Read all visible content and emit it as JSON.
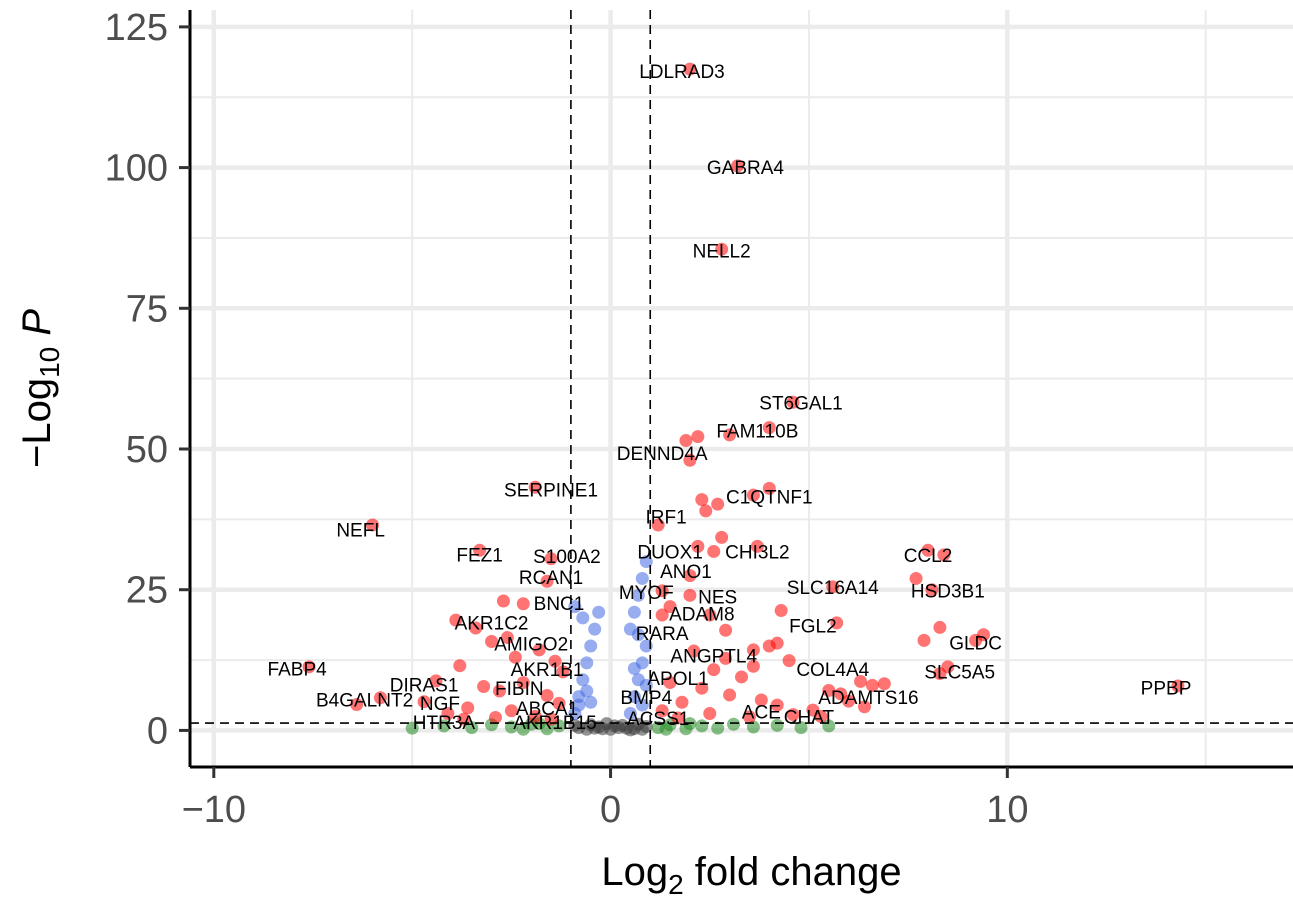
{
  "chart_data": {
    "type": "scatter",
    "title": "",
    "xlabel": "Log2 fold change",
    "ylabel": "−Log10 P",
    "xlim": [
      -10.6,
      17.2
    ],
    "ylim": [
      -6.5,
      128
    ],
    "x_ticks": [
      -10,
      0,
      10
    ],
    "x_tick_labels": [
      "−10",
      "0",
      "10"
    ],
    "y_ticks": [
      0,
      25,
      50,
      75,
      100,
      125
    ],
    "y_tick_labels": [
      "0",
      "25",
      "50",
      "75",
      "100",
      "125"
    ],
    "grid": true,
    "legend": "none",
    "thresholds": {
      "log2fc": [
        -1,
        1
      ],
      "neg_log10_p": 1.3
    },
    "colors": {
      "ns": "#3d3d3d",
      "log2fc_only": "#228B22",
      "p_only": "#4169E1",
      "both": "#FF0000",
      "grid": "#ebebeb",
      "axis": "#000000"
    },
    "series": [
      {
        "points": [
          [
            -0.8,
            0.5
          ],
          [
            -0.5,
            1.0
          ],
          [
            -0.2,
            0.3
          ],
          [
            0.1,
            0.8
          ],
          [
            0.4,
            0.4
          ],
          [
            0.7,
            1.1
          ],
          [
            -0.6,
            0.2
          ],
          [
            -0.3,
            0.6
          ],
          [
            0.0,
            0.2
          ],
          [
            0.3,
            0.9
          ],
          [
            0.6,
            0.3
          ],
          [
            0.9,
            0.7
          ],
          [
            -0.9,
            0.9
          ],
          [
            -0.1,
            1.2
          ],
          [
            0.2,
            0.5
          ],
          [
            0.5,
            0.1
          ],
          [
            -0.4,
            0.4
          ],
          [
            0.8,
            0.2
          ]
        ]
      },
      {
        "points": [
          [
            -3.5,
            0.5
          ],
          [
            -3.0,
            1.0
          ],
          [
            -2.5,
            0.6
          ],
          [
            -2.0,
            1.1
          ],
          [
            -1.6,
            0.3
          ],
          [
            -1.3,
            0.8
          ],
          [
            1.2,
            0.5
          ],
          [
            1.5,
            1.0
          ],
          [
            1.9,
            0.3
          ],
          [
            2.3,
            0.8
          ],
          [
            2.7,
            0.4
          ],
          [
            3.1,
            1.1
          ],
          [
            3.6,
            0.6
          ],
          [
            4.2,
            0.9
          ],
          [
            4.8,
            0.5
          ],
          [
            -4.2,
            0.8
          ],
          [
            -5.0,
            0.4
          ],
          [
            5.5,
            0.8
          ],
          [
            -2.2,
            0.2
          ],
          [
            2.0,
            1.2
          ],
          [
            -1.8,
            1.2
          ],
          [
            1.4,
            0.2
          ]
        ]
      },
      {
        "points": [
          [
            -0.9,
            3
          ],
          [
            -0.8,
            6
          ],
          [
            -0.7,
            9
          ],
          [
            -0.6,
            12
          ],
          [
            -0.5,
            15
          ],
          [
            -0.4,
            18
          ],
          [
            -0.3,
            21
          ],
          [
            -0.8,
            4.5
          ],
          [
            -0.6,
            7
          ],
          [
            -0.9,
            22
          ],
          [
            -0.7,
            20
          ],
          [
            -0.5,
            5
          ],
          [
            0.5,
            3
          ],
          [
            0.6,
            6
          ],
          [
            0.7,
            9
          ],
          [
            0.8,
            12
          ],
          [
            0.9,
            15
          ],
          [
            0.5,
            18
          ],
          [
            0.6,
            21
          ],
          [
            0.7,
            24
          ],
          [
            0.8,
            27
          ],
          [
            0.9,
            30
          ],
          [
            0.6,
            11
          ],
          [
            0.8,
            4.5
          ],
          [
            0.7,
            17
          ],
          [
            0.9,
            8
          ]
        ]
      },
      {
        "points": [
          [
            2.0,
            117.5
          ],
          [
            3.2,
            100.3
          ],
          [
            2.8,
            85.5
          ],
          [
            4.6,
            58.3
          ],
          [
            4.0,
            53.8
          ],
          [
            2.2,
            52.2
          ],
          [
            1.9,
            51.5
          ],
          [
            3.0,
            52.5
          ],
          [
            2.0,
            48.0
          ],
          [
            4.0,
            43.0
          ],
          [
            3.6,
            41.8
          ],
          [
            2.3,
            41.0
          ],
          [
            2.7,
            40.2
          ],
          [
            2.4,
            39.0
          ],
          [
            -1.9,
            43.2
          ],
          [
            -6.0,
            36.5
          ],
          [
            1.2,
            36.5
          ],
          [
            2.8,
            34.3
          ],
          [
            3.7,
            32.7
          ],
          [
            2.2,
            32.7
          ],
          [
            2.6,
            31.8
          ],
          [
            -3.3,
            32.0
          ],
          [
            -1.5,
            30.5
          ],
          [
            8.0,
            32.0
          ],
          [
            8.4,
            31.2
          ],
          [
            7.7,
            27.0
          ],
          [
            8.1,
            25.0
          ],
          [
            5.6,
            25.5
          ],
          [
            2.0,
            27.5
          ],
          [
            -1.6,
            26.5
          ],
          [
            -2.7,
            23.0
          ],
          [
            -2.2,
            22.5
          ],
          [
            1.3,
            24.8
          ],
          [
            2.0,
            24.0
          ],
          [
            1.5,
            22.0
          ],
          [
            4.3,
            21.3
          ],
          [
            2.5,
            20.5
          ],
          [
            -3.9,
            19.6
          ],
          [
            -3.4,
            18.2
          ],
          [
            -2.6,
            16.5
          ],
          [
            5.7,
            19.1
          ],
          [
            2.9,
            17.8
          ],
          [
            1.3,
            20.5
          ],
          [
            8.3,
            18.3
          ],
          [
            7.9,
            16.0
          ],
          [
            9.4,
            17.0
          ],
          [
            9.2,
            16.0
          ],
          [
            4.2,
            15.5
          ],
          [
            4.0,
            15.0
          ],
          [
            3.6,
            14.3
          ],
          [
            2.1,
            14.1
          ],
          [
            -3.0,
            15.8
          ],
          [
            -2.4,
            13.0
          ],
          [
            -1.8,
            14.3
          ],
          [
            -7.6,
            11.3
          ],
          [
            -3.8,
            11.5
          ],
          [
            -1.2,
            10.4
          ],
          [
            -1.4,
            12.3
          ],
          [
            2.9,
            12.8
          ],
          [
            3.6,
            11.4
          ],
          [
            4.5,
            12.4
          ],
          [
            8.5,
            11.3
          ],
          [
            8.3,
            10.1
          ],
          [
            6.3,
            8.7
          ],
          [
            6.6,
            8.0
          ],
          [
            6.9,
            8.3
          ],
          [
            5.5,
            7.1
          ],
          [
            5.8,
            6.5
          ],
          [
            6.0,
            5.2
          ],
          [
            14.3,
            7.9
          ],
          [
            -4.4,
            8.8
          ],
          [
            -4.7,
            5.1
          ],
          [
            -5.8,
            5.8
          ],
          [
            -6.4,
            4.6
          ],
          [
            -3.2,
            7.8
          ],
          [
            -2.8,
            7.0
          ],
          [
            -2.2,
            8.5
          ],
          [
            -1.6,
            6.2
          ],
          [
            -3.6,
            4.0
          ],
          [
            -4.1,
            3.0
          ],
          [
            -2.5,
            3.5
          ],
          [
            -1.9,
            2.5
          ],
          [
            1.5,
            8.5
          ],
          [
            2.3,
            7.5
          ],
          [
            3.0,
            6.3
          ],
          [
            3.8,
            5.4
          ],
          [
            4.2,
            4.5
          ],
          [
            5.1,
            3.6
          ],
          [
            4.6,
            2.8
          ],
          [
            2.5,
            3.0
          ],
          [
            1.8,
            5.0
          ],
          [
            1.3,
            3.5
          ],
          [
            3.3,
            9.5
          ],
          [
            2.6,
            10.8
          ],
          [
            -1.3,
            4.8
          ],
          [
            -2.9,
            2.3
          ],
          [
            5.3,
            2.5
          ],
          [
            6.4,
            4.2
          ],
          [
            1.7,
            2.2
          ],
          [
            3.5,
            2.4
          ],
          [
            -3.7,
            2.0
          ],
          [
            -1.5,
            2.0
          ]
        ]
      }
    ],
    "labels": [
      {
        "text": "LDLRAD3",
        "x": 1.8,
        "y": 117.2
      },
      {
        "text": "GABRA4",
        "x": 3.4,
        "y": 100.1
      },
      {
        "text": "NELL2",
        "x": 2.8,
        "y": 85.3
      },
      {
        "text": "ST6GAL1",
        "x": 4.8,
        "y": 58.3
      },
      {
        "text": "FAM110B",
        "x": 3.7,
        "y": 53.3
      },
      {
        "text": "DENND4A",
        "x": 1.3,
        "y": 49.3
      },
      {
        "text": "SERPINE1",
        "x": -1.5,
        "y": 42.8
      },
      {
        "text": "C1QTNF1",
        "x": 4.0,
        "y": 41.6
      },
      {
        "text": "NEFL",
        "x": -6.3,
        "y": 35.7
      },
      {
        "text": "IRF1",
        "x": 1.4,
        "y": 38.0
      },
      {
        "text": "FEZ1",
        "x": -3.3,
        "y": 31.3
      },
      {
        "text": "S100A2",
        "x": -1.1,
        "y": 31.0
      },
      {
        "text": "DUOX1",
        "x": 1.5,
        "y": 31.8
      },
      {
        "text": "CHI3L2",
        "x": 3.7,
        "y": 31.8
      },
      {
        "text": "CCL2",
        "x": 8.0,
        "y": 31.2
      },
      {
        "text": "RCAN1",
        "x": -1.5,
        "y": 27.3
      },
      {
        "text": "ANO1",
        "x": 1.9,
        "y": 28.3
      },
      {
        "text": "SLC16A14",
        "x": 5.6,
        "y": 25.5
      },
      {
        "text": "HSD3B1",
        "x": 8.5,
        "y": 24.9
      },
      {
        "text": "MYOF",
        "x": 0.9,
        "y": 24.6
      },
      {
        "text": "NES",
        "x": 2.7,
        "y": 23.8
      },
      {
        "text": "BNC1",
        "x": -1.3,
        "y": 22.6
      },
      {
        "text": "ADAM8",
        "x": 2.3,
        "y": 20.8
      },
      {
        "text": "AKR1C2",
        "x": -3.0,
        "y": 19.2
      },
      {
        "text": "FGL2",
        "x": 5.1,
        "y": 18.6
      },
      {
        "text": "RARA",
        "x": 1.3,
        "y": 17.3
      },
      {
        "text": "GLDC",
        "x": 9.2,
        "y": 15.6
      },
      {
        "text": "AMIGO2",
        "x": -2.0,
        "y": 15.4
      },
      {
        "text": "ANGPTL4",
        "x": 2.6,
        "y": 13.3
      },
      {
        "text": "FABP4",
        "x": -7.9,
        "y": 11.0
      },
      {
        "text": "AKR1B1",
        "x": -1.6,
        "y": 10.9
      },
      {
        "text": "COL4A4",
        "x": 5.6,
        "y": 10.9
      },
      {
        "text": "SLC5A5",
        "x": 8.8,
        "y": 10.5
      },
      {
        "text": "APOL1",
        "x": 1.7,
        "y": 9.3
      },
      {
        "text": "DIRAS1",
        "x": -4.7,
        "y": 8.2
      },
      {
        "text": "FIBIN",
        "x": -2.3,
        "y": 7.5
      },
      {
        "text": "PPBP",
        "x": 14.0,
        "y": 7.6
      },
      {
        "text": "B4GALNT2",
        "x": -6.2,
        "y": 5.5
      },
      {
        "text": "NGF",
        "x": -4.3,
        "y": 4.9
      },
      {
        "text": "BMP4",
        "x": 0.9,
        "y": 5.9
      },
      {
        "text": "ADAMTS16",
        "x": 6.5,
        "y": 5.9
      },
      {
        "text": "ABCA1",
        "x": -1.6,
        "y": 4.0
      },
      {
        "text": "ACE",
        "x": 3.8,
        "y": 3.4
      },
      {
        "text": "CHAT",
        "x": 5.0,
        "y": 2.5
      },
      {
        "text": "ACSS1",
        "x": 1.2,
        "y": 2.2
      },
      {
        "text": "HTR3A",
        "x": -4.2,
        "y": 1.5
      },
      {
        "text": "AKR1B15",
        "x": -1.4,
        "y": 1.5
      }
    ]
  }
}
